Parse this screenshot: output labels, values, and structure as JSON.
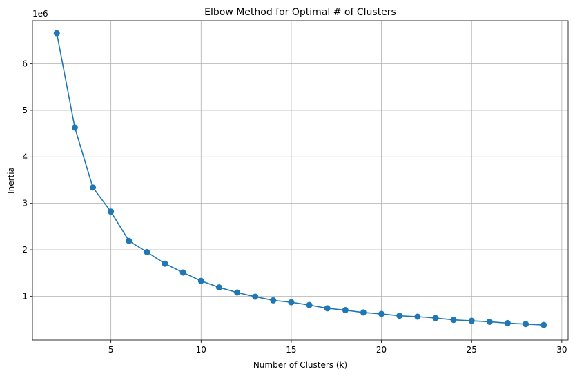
{
  "chart_data": {
    "type": "line",
    "title": "Elbow Method for Optimal # of Clusters",
    "xlabel": "Number of Clusters (k)",
    "ylabel": "Inertia",
    "y_offset_label": "1e6",
    "xlim": [
      0.65,
      30.35
    ],
    "ylim": [
      0.055,
      6.93
    ],
    "xticks": [
      5,
      10,
      15,
      20,
      25,
      30
    ],
    "yticks": [
      1,
      2,
      3,
      4,
      5,
      6
    ],
    "grid": true,
    "marker": "circle",
    "line_color": "#1f77b4",
    "grid_color": "#b0b0b0",
    "series": [
      {
        "x": [
          2,
          3,
          4,
          5,
          6,
          7,
          8,
          9,
          10,
          11,
          12,
          13,
          14,
          15,
          16,
          17,
          18,
          19,
          20,
          21,
          22,
          23,
          24,
          25,
          26,
          27,
          28,
          29
        ],
        "values": [
          6.66,
          4.63,
          3.34,
          2.82,
          2.19,
          1.95,
          1.7,
          1.51,
          1.33,
          1.19,
          1.08,
          0.99,
          0.91,
          0.87,
          0.81,
          0.74,
          0.7,
          0.65,
          0.62,
          0.58,
          0.56,
          0.53,
          0.49,
          0.47,
          0.45,
          0.42,
          0.4,
          0.38
        ]
      }
    ]
  }
}
